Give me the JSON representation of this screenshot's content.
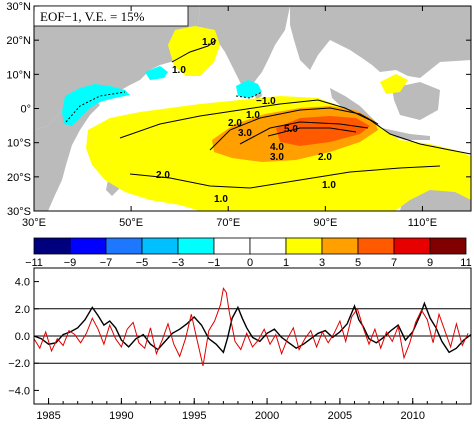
{
  "chart_data": [
    {
      "type": "heatmap",
      "title": "EOF−1, V.E. = 15%",
      "x_ticks": [
        "30°E",
        "50°E",
        "70°E",
        "90°E",
        "110°E"
      ],
      "x_tick_values": [
        30,
        50,
        70,
        90,
        110
      ],
      "y_ticks": [
        "30°N",
        "20°N",
        "10°N",
        "0°",
        "10°S",
        "20°S",
        "30°S"
      ],
      "y_tick_values": [
        30,
        20,
        10,
        0,
        -10,
        -20,
        -30
      ],
      "xlim": [
        30,
        120
      ],
      "ylim": [
        -30,
        30
      ],
      "land_color": "#bbbbbb",
      "contour_labels": [
        "1.0",
        "1.0",
        "−1.0",
        "2.0",
        "1.0",
        "3.0",
        "5.0",
        "4.0",
        "3.0",
        "2.0",
        "2.0",
        "1.0",
        "1.0"
      ],
      "colorbar": {
        "ticks": [
          "−11",
          "−9",
          "−7",
          "−5",
          "−3",
          "−1",
          "0",
          "1",
          "3",
          "5",
          "7",
          "9",
          "11"
        ],
        "colors": [
          "#00007f",
          "#0000ff",
          "#1e78ff",
          "#00c0ff",
          "#00ffff",
          "#ffffff",
          "#ffffff",
          "#ffff00",
          "#ffa000",
          "#ff5a00",
          "#e60000",
          "#800000"
        ]
      }
    },
    {
      "type": "line",
      "x_ticks": [
        "1985",
        "1990",
        "1995",
        "2000",
        "2005",
        "2010"
      ],
      "x_tick_values": [
        1985,
        1990,
        1995,
        2000,
        2005,
        2010
      ],
      "y_ticks": [
        "4.0",
        "2.0",
        "0.0",
        "−2.0",
        "−4.0"
      ],
      "y_tick_values": [
        4,
        2,
        0,
        -2,
        -4
      ],
      "xlim": [
        1984,
        2014
      ],
      "ylim": [
        -5,
        5
      ],
      "reference_lines": [
        2,
        0,
        -2
      ],
      "series": [
        {
          "color": "#000000",
          "x": [
            1984.0,
            1984.5,
            1985.0,
            1985.5,
            1986.0,
            1986.5,
            1987.0,
            1987.5,
            1988.0,
            1988.4,
            1988.8,
            1989.2,
            1989.6,
            1990.0,
            1990.5,
            1991.0,
            1991.5,
            1992.0,
            1992.5,
            1993.0,
            1993.5,
            1994.0,
            1994.5,
            1995.0,
            1995.5,
            1996.0,
            1996.5,
            1997.0,
            1997.3,
            1997.6,
            1998.0,
            1998.3,
            1998.6,
            1999.0,
            1999.5,
            2000.0,
            2000.5,
            2001.0,
            2001.5,
            2002.0,
            2002.5,
            2003.0,
            2003.5,
            2004.0,
            2004.5,
            2005.0,
            2005.5,
            2006.0,
            2006.3,
            2006.6,
            2007.0,
            2007.5,
            2008.0,
            2008.5,
            2009.0,
            2009.5,
            2010.0,
            2010.5,
            2010.8,
            2011.2,
            2011.6,
            2012.0,
            2012.5,
            2013.0,
            2013.5,
            2014.0
          ],
          "y": [
            0.0,
            -0.2,
            -0.6,
            -0.5,
            0.1,
            0.3,
            0.6,
            1.2,
            2.1,
            1.5,
            0.8,
            1.1,
            0.6,
            -0.3,
            -0.8,
            -0.2,
            0.1,
            -0.6,
            -1.0,
            -0.4,
            0.2,
            0.5,
            0.9,
            1.4,
            0.8,
            -0.2,
            -0.6,
            -1.2,
            -0.1,
            1.3,
            2.1,
            1.3,
            0.6,
            -0.1,
            -0.4,
            0.2,
            0.5,
            -0.1,
            -0.5,
            -0.9,
            -0.6,
            -0.2,
            0.2,
            0.4,
            -0.1,
            0.3,
            0.9,
            2.2,
            1.2,
            0.7,
            -0.2,
            -0.5,
            -0.1,
            0.4,
            0.8,
            -0.3,
            0.3,
            1.5,
            2.4,
            1.3,
            0.6,
            -0.4,
            -1.2,
            -0.9,
            -0.3,
            0.1
          ]
        },
        {
          "color": "#e00000",
          "x": [
            1984.0,
            1984.4,
            1984.8,
            1985.2,
            1985.6,
            1986.0,
            1986.4,
            1986.8,
            1987.2,
            1987.6,
            1988.0,
            1988.4,
            1988.8,
            1989.2,
            1989.6,
            1990.0,
            1990.4,
            1990.8,
            1991.2,
            1991.6,
            1992.0,
            1992.4,
            1992.8,
            1993.2,
            1993.6,
            1994.0,
            1994.4,
            1994.8,
            1995.2,
            1995.6,
            1996.0,
            1996.4,
            1996.8,
            1997.0,
            1997.2,
            1997.4,
            1997.8,
            1998.2,
            1998.6,
            1999.0,
            1999.4,
            1999.8,
            2000.2,
            2000.6,
            2001.0,
            2001.4,
            2001.8,
            2002.2,
            2002.6,
            2003.0,
            2003.4,
            2003.8,
            2004.2,
            2004.6,
            2005.0,
            2005.4,
            2005.8,
            2006.2,
            2006.6,
            2007.0,
            2007.4,
            2007.8,
            2008.2,
            2008.6,
            2009.0,
            2009.4,
            2009.8,
            2010.2,
            2010.6,
            2011.0,
            2011.4,
            2011.8,
            2012.2,
            2012.6,
            2013.0,
            2013.4,
            2013.8
          ],
          "y": [
            -0.2,
            -0.9,
            0.3,
            -1.1,
            -0.2,
            -0.7,
            0.4,
            0.1,
            -0.5,
            0.2,
            1.3,
            0.5,
            -0.6,
            0.8,
            -0.2,
            -0.8,
            0.5,
            1.0,
            -0.5,
            -0.9,
            0.6,
            -1.3,
            -0.3,
            0.9,
            -0.6,
            -1.5,
            -0.2,
            1.6,
            -0.3,
            -2.2,
            0.4,
            1.1,
            2.3,
            3.5,
            3.2,
            1.8,
            -0.4,
            -1.0,
            0.2,
            -0.8,
            -0.3,
            0.5,
            -0.6,
            0.1,
            -1.3,
            -0.2,
            0.6,
            -1.0,
            -0.2,
            0.4,
            -0.8,
            0.3,
            -0.5,
            0.2,
            1.1,
            -0.4,
            1.4,
            2.0,
            0.6,
            -0.6,
            0.5,
            -0.9,
            0.3,
            -0.4,
            0.7,
            -1.6,
            -0.5,
            1.0,
            1.9,
            1.2,
            -0.5,
            1.6,
            0.4,
            -0.8,
            0.9,
            -0.7,
            0.2
          ]
        }
      ]
    }
  ]
}
